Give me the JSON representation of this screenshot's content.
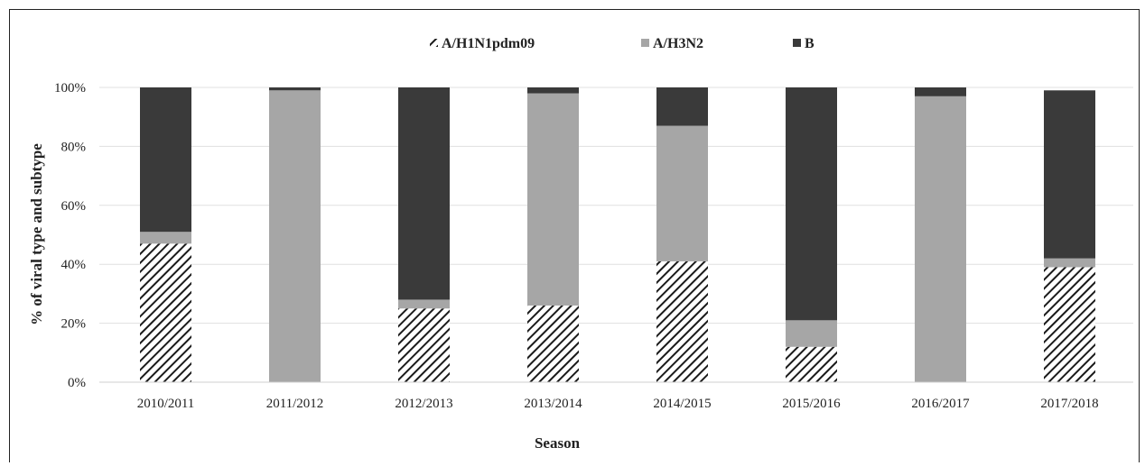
{
  "colors": {
    "A/H1N1pdm09": "#1a1a1a",
    "A/H3N2": "#a6a6a6",
    "B": "#3a3a3a",
    "grid": "#e0e0e0"
  },
  "chart_data": {
    "type": "bar",
    "stacked": true,
    "xlabel": "Season",
    "ylabel": "% of viral type and subtype",
    "ylim": [
      0,
      100
    ],
    "yticks": [
      "0%",
      "20%",
      "40%",
      "60%",
      "80%",
      "100%"
    ],
    "legend_position": "top",
    "grid": true,
    "categories": [
      "2010/2011",
      "2011/2012",
      "2012/2013",
      "2013/2014",
      "2014/2015",
      "2015/2016",
      "2016/2017",
      "2017/2018"
    ],
    "series": [
      {
        "name": "A/H1N1pdm09",
        "pattern": "hatched",
        "values": [
          47,
          0,
          25,
          26,
          41,
          12,
          0,
          39
        ]
      },
      {
        "name": "A/H3N2",
        "pattern": "solid-light-gray",
        "values": [
          4,
          99,
          3,
          72,
          46,
          9,
          97,
          3
        ]
      },
      {
        "name": "B",
        "pattern": "solid-dark",
        "values": [
          49,
          1,
          72,
          2,
          13,
          79,
          3,
          57
        ]
      }
    ]
  }
}
